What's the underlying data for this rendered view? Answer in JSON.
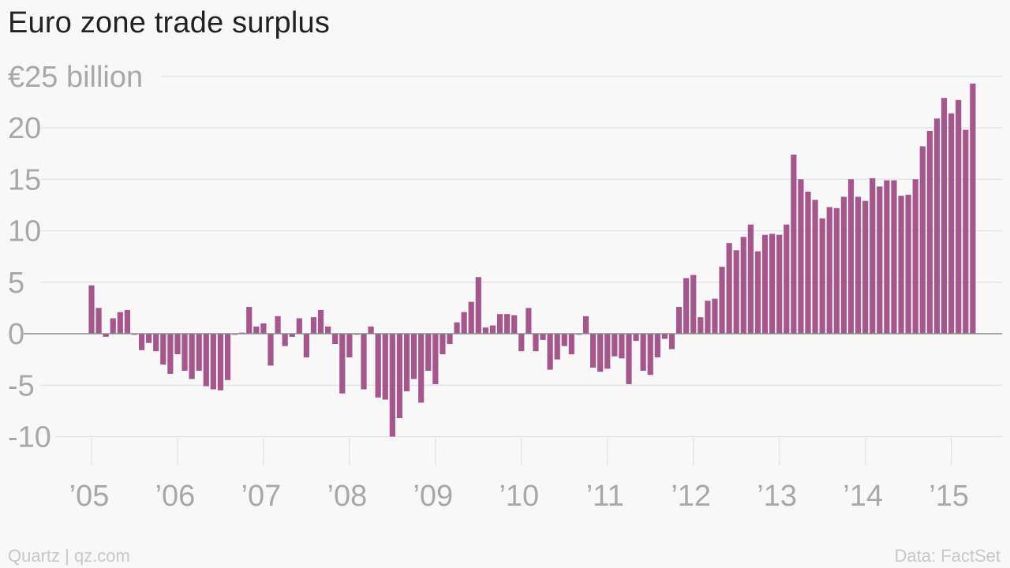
{
  "header": {
    "title": "Euro zone trade surplus"
  },
  "footer": {
    "source_left": "Quartz | qz.com",
    "source_right": "Data: FactSet"
  },
  "colors": {
    "bar": "#a5578b",
    "axis_text": "#a8a8a8",
    "grid": "#e2e2e2",
    "zero_line": "#8a8a8a",
    "background": "#f8f8f8"
  },
  "chart_data": {
    "type": "bar",
    "title": "Euro zone trade surplus",
    "ylabel": "",
    "xlabel": "",
    "unit_label": "€25 billion",
    "ylim": [
      -12.5,
      25
    ],
    "y_ticks": [
      -10,
      -5,
      0,
      5,
      10,
      15,
      20,
      25
    ],
    "y_tick_labels": [
      "-10",
      "-5",
      "0",
      "5",
      "10",
      "15",
      "20",
      "€25 billion"
    ],
    "x_start": "2005-01",
    "x_ticks": [
      "’05",
      "’06",
      "’07",
      "’08",
      "’09",
      "’10",
      "’11",
      "’12",
      "’13",
      "’14",
      "’15"
    ],
    "x_tick_years": [
      2005,
      2006,
      2007,
      2008,
      2009,
      2010,
      2011,
      2012,
      2013,
      2014,
      2015
    ],
    "grid": true,
    "series": [
      {
        "name": "",
        "values": [
          4.7,
          2.5,
          -0.3,
          1.5,
          2.1,
          2.3,
          -0.1,
          -1.6,
          -0.9,
          -1.7,
          -3.0,
          -3.9,
          -2.0,
          -3.6,
          -4.4,
          -3.6,
          -5.1,
          -5.4,
          -5.5,
          -4.5,
          -0.1,
          0.1,
          2.6,
          0.7,
          1.0,
          -3.1,
          1.7,
          -1.2,
          -0.3,
          1.5,
          -2.3,
          1.6,
          2.3,
          0.7,
          -1.0,
          -5.8,
          -2.3,
          -0.1,
          -5.4,
          0.7,
          -6.2,
          -6.4,
          -10.0,
          -8.2,
          -5.6,
          -4.4,
          -6.7,
          -3.6,
          -4.9,
          -2.0,
          -1.0,
          1.1,
          2.1,
          3.1,
          5.5,
          0.6,
          0.8,
          1.9,
          1.9,
          1.8,
          -1.7,
          2.5,
          -1.7,
          -0.6,
          -3.5,
          -2.5,
          -1.2,
          -2.0,
          -0.1,
          1.7,
          -3.3,
          -3.7,
          -3.4,
          -2.2,
          -2.4,
          -4.9,
          -0.7,
          -3.6,
          -4.0,
          -2.3,
          -0.5,
          -1.5,
          2.6,
          5.4,
          5.7,
          1.6,
          3.2,
          3.4,
          6.5,
          8.8,
          8.1,
          9.4,
          10.6,
          8.0,
          9.6,
          9.7,
          9.6,
          10.6,
          17.4,
          15.0,
          13.8,
          13.0,
          11.2,
          12.3,
          12.2,
          13.3,
          15.0,
          13.3,
          12.9,
          15.1,
          14.3,
          14.9,
          14.9,
          13.4,
          13.5,
          15.0,
          18.2,
          19.7,
          20.9,
          22.9,
          21.4,
          22.7,
          19.8,
          24.3
        ]
      }
    ]
  }
}
